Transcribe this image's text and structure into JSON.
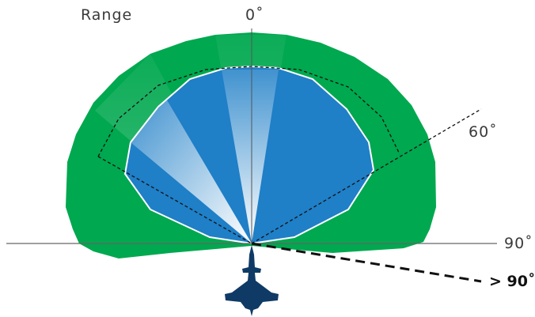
{
  "labels": {
    "range": "Range",
    "deg0": "0˚",
    "deg60": "60˚",
    "deg90": "90˚",
    "gt90": "> 90˚"
  },
  "colors": {
    "outer_coverage": "#00a84f",
    "inner_coverage": "#1f7fc7",
    "beam_highlight": "#ffffff",
    "aircraft": "#0f3a66",
    "axis_line": "#555555",
    "dashed_line": "#111111"
  },
  "icons": {
    "aircraft": "fighter-jet-icon"
  }
}
